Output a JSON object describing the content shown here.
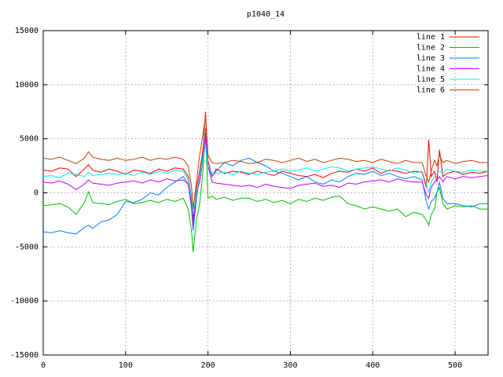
{
  "chart_data": {
    "type": "line",
    "title": "p1040_14",
    "x": [
      0,
      10,
      20,
      30,
      40,
      50,
      55,
      60,
      70,
      80,
      90,
      100,
      110,
      120,
      130,
      140,
      150,
      160,
      170,
      176,
      180,
      182,
      186,
      190,
      194,
      197,
      200,
      205,
      210,
      220,
      230,
      240,
      250,
      260,
      270,
      280,
      290,
      300,
      310,
      320,
      330,
      340,
      350,
      360,
      370,
      380,
      390,
      400,
      410,
      420,
      430,
      440,
      450,
      460,
      465,
      468,
      471,
      475,
      478,
      481,
      485,
      490,
      500,
      510,
      520,
      530,
      540
    ],
    "series": [
      {
        "name": "line 1",
        "color": "#ff0000",
        "values": [
          2100,
          2000,
          2300,
          2200,
          1500,
          2200,
          2600,
          2100,
          1900,
          2200,
          2000,
          1700,
          2100,
          2000,
          1800,
          2200,
          2000,
          2300,
          2200,
          1500,
          -500,
          -2500,
          500,
          2000,
          4000,
          7500,
          3000,
          1500,
          2200,
          1800,
          2000,
          1900,
          1700,
          2000,
          1800,
          1600,
          2000,
          1800,
          1600,
          1500,
          1700,
          1400,
          1800,
          2000,
          1900,
          2200,
          2000,
          2300,
          1800,
          2100,
          2000,
          1800,
          2000,
          1900,
          500,
          4900,
          1500,
          2000,
          1000,
          4000,
          1500,
          1800,
          2000,
          1700,
          1900,
          1800,
          2000
        ]
      },
      {
        "name": "line 2",
        "color": "#00c000",
        "values": [
          -1200,
          -1100,
          -1000,
          -1300,
          -2000,
          -900,
          100,
          -900,
          -1000,
          -1100,
          -800,
          -600,
          -1000,
          -900,
          -700,
          -900,
          -600,
          -800,
          -500,
          -1500,
          -3500,
          -5500,
          -2500,
          -1000,
          2000,
          6000,
          -500,
          -300,
          -600,
          -400,
          -700,
          -500,
          -500,
          -800,
          -600,
          -900,
          -700,
          -1000,
          -600,
          -800,
          -500,
          -700,
          -400,
          -300,
          -1000,
          -1200,
          -1500,
          -1300,
          -1500,
          -1700,
          -1500,
          -2200,
          -1800,
          -2000,
          -2500,
          -3000,
          -2000,
          -1500,
          0,
          500,
          -1000,
          -1500,
          -1200,
          -1300,
          -1200,
          -1500,
          -1500
        ]
      },
      {
        "name": "line 3",
        "color": "#0080ff",
        "values": [
          -3600,
          -3700,
          -3500,
          -3700,
          -3800,
          -3200,
          -3000,
          -3300,
          -2700,
          -2500,
          -2000,
          -800,
          -900,
          -600,
          0,
          -200,
          500,
          1000,
          1500,
          800,
          -1500,
          -3500,
          -500,
          1500,
          3500,
          5000,
          2500,
          1500,
          2000,
          2800,
          2500,
          3000,
          3200,
          2800,
          2500,
          2000,
          1800,
          1500,
          1200,
          1500,
          1000,
          800,
          1200,
          1000,
          1500,
          1800,
          1700,
          2000,
          1600,
          1800,
          1500,
          1300,
          1500,
          1200,
          -800,
          -1500,
          -800,
          -500,
          0,
          1000,
          -500,
          -1000,
          -1000,
          -1200,
          -1300,
          -1000,
          -1000
        ]
      },
      {
        "name": "line 4",
        "color": "#c000ff",
        "values": [
          1000,
          900,
          1100,
          800,
          300,
          800,
          1200,
          900,
          800,
          700,
          900,
          1000,
          1100,
          900,
          1200,
          1000,
          1300,
          1100,
          1200,
          800,
          -1000,
          -3000,
          0,
          1000,
          3000,
          5500,
          2500,
          1000,
          900,
          800,
          700,
          600,
          700,
          500,
          800,
          600,
          500,
          400,
          700,
          800,
          900,
          600,
          700,
          500,
          900,
          800,
          1000,
          1100,
          1200,
          1000,
          1300,
          1100,
          1000,
          1000,
          -200,
          -500,
          500,
          1000,
          1200,
          1500,
          1000,
          1500,
          1300,
          1500,
          1400,
          1500,
          1600
        ]
      },
      {
        "name": "line 5",
        "color": "#00eeee",
        "values": [
          1500,
          1600,
          1400,
          1800,
          1700,
          1500,
          1900,
          1600,
          1700,
          1800,
          1700,
          1800,
          1600,
          1900,
          1700,
          2000,
          1800,
          2100,
          2000,
          1200,
          -500,
          -2000,
          0,
          1500,
          3000,
          4500,
          2500,
          1800,
          1800,
          1900,
          1700,
          2000,
          1800,
          1700,
          1900,
          2000,
          2200,
          2000,
          2100,
          2300,
          2000,
          2200,
          2400,
          2300,
          2000,
          2200,
          2300,
          2400,
          2200,
          2000,
          2300,
          2100,
          1800,
          2000,
          800,
          0,
          1000,
          1500,
          1800,
          2000,
          1800,
          2200,
          2000,
          1900,
          2100,
          2000,
          2000
        ]
      },
      {
        "name": "line 6",
        "color": "#c04000",
        "values": [
          3200,
          3100,
          3300,
          3000,
          2700,
          3200,
          3800,
          3300,
          3100,
          3000,
          3200,
          3000,
          3100,
          3300,
          3000,
          3200,
          3100,
          3300,
          3100,
          2500,
          500,
          -1500,
          1000,
          3500,
          5500,
          7000,
          3500,
          2800,
          2700,
          2800,
          3000,
          2900,
          2700,
          2800,
          3100,
          3000,
          2800,
          3000,
          3200,
          2900,
          3100,
          2800,
          3000,
          3200,
          3100,
          2900,
          3000,
          2800,
          3100,
          2900,
          2700,
          3000,
          2800,
          2800,
          1500,
          1000,
          2000,
          3000,
          2500,
          3500,
          2800,
          3000,
          2700,
          2900,
          3000,
          2800,
          2800
        ]
      }
    ],
    "xlim": [
      0,
      540
    ],
    "xticks": [
      0,
      100,
      200,
      300,
      400,
      500
    ],
    "ylim": [
      -15000,
      15000
    ],
    "yticks": [
      -15000,
      -10000,
      -5000,
      0,
      5000,
      10000,
      15000
    ],
    "grid": true,
    "legend": "top-right"
  }
}
